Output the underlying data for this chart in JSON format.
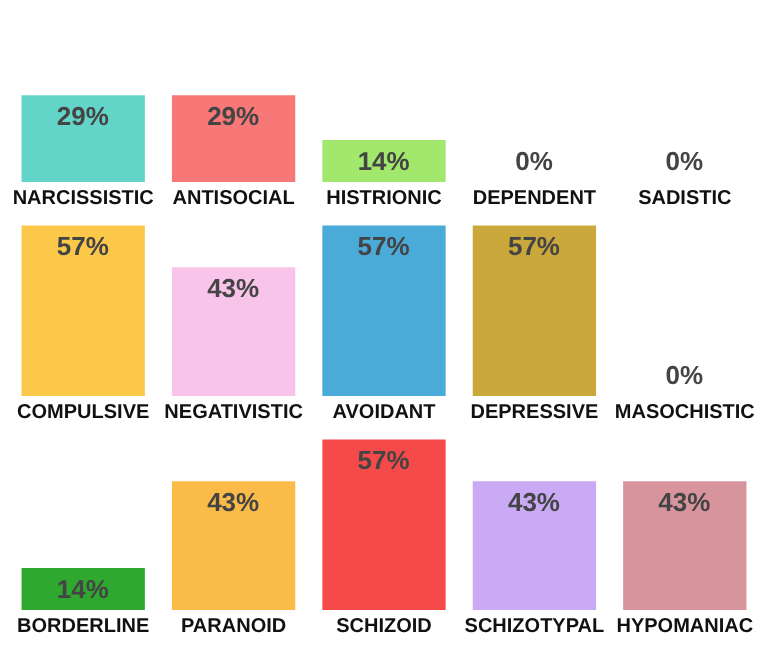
{
  "chart_data": [
    {
      "type": "bar",
      "categories": [
        "NARCISSISTIC",
        "ANTISOCIAL",
        "HISTRIONIC",
        "DEPENDENT",
        "SADISTIC"
      ],
      "values": [
        29,
        29,
        14,
        0,
        0
      ],
      "colors": [
        "#62d4c8",
        "#f87878",
        "#a2e86c",
        "#f5b58b",
        "#b58ce8"
      ],
      "data_labels": true,
      "value_labels": [
        "29%",
        "29%",
        "14%",
        "0%",
        "0%"
      ]
    },
    {
      "type": "bar",
      "categories": [
        "COMPULSIVE",
        "NEGATIVISTIC",
        "AVOIDANT",
        "DEPRESSIVE",
        "MASOCHISTIC"
      ],
      "values": [
        57,
        43,
        57,
        57,
        0
      ],
      "colors": [
        "#fcc84a",
        "#f9c4ea",
        "#4aaad8",
        "#caa83c",
        "#999999"
      ],
      "data_labels": true,
      "value_labels": [
        "57%",
        "43%",
        "57%",
        "57%",
        "0%"
      ]
    },
    {
      "type": "bar",
      "categories": [
        "BORDERLINE",
        "PARANOID",
        "SCHIZOID",
        "SCHIZOTYPAL",
        "HYPOMANIAC"
      ],
      "values": [
        14,
        43,
        57,
        43,
        43
      ],
      "colors": [
        "#2fa82f",
        "#fbbb48",
        "#f64a4a",
        "#caa9f5",
        "#d8949d"
      ],
      "data_labels": true,
      "value_labels": [
        "14%",
        "43%",
        "57%",
        "43%",
        "43%"
      ]
    }
  ]
}
